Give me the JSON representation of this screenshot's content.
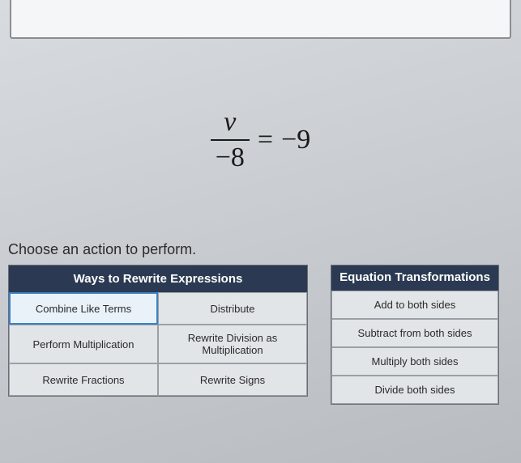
{
  "equation": {
    "numerator": "v",
    "denominator": "−8",
    "equals": "=",
    "rhs": "−9"
  },
  "prompt": "Choose an action to perform.",
  "rewrite": {
    "header": "Ways to Rewrite Expressions",
    "cells": [
      "Combine Like Terms",
      "Distribute",
      "Perform Multiplication",
      "Rewrite Division as Multiplication",
      "Rewrite Fractions",
      "Rewrite Signs"
    ],
    "selected_index": 0
  },
  "transforms": {
    "header": "Equation Transformations",
    "items": [
      "Add to both sides",
      "Subtract from both sides",
      "Multiply both sides",
      "Divide both sides"
    ]
  },
  "colors": {
    "header_bg": "#2b3a52",
    "selected_border": "#3b82c4",
    "cell_bg": "#e2e5e8",
    "cell_border": "#9aa0a6"
  }
}
